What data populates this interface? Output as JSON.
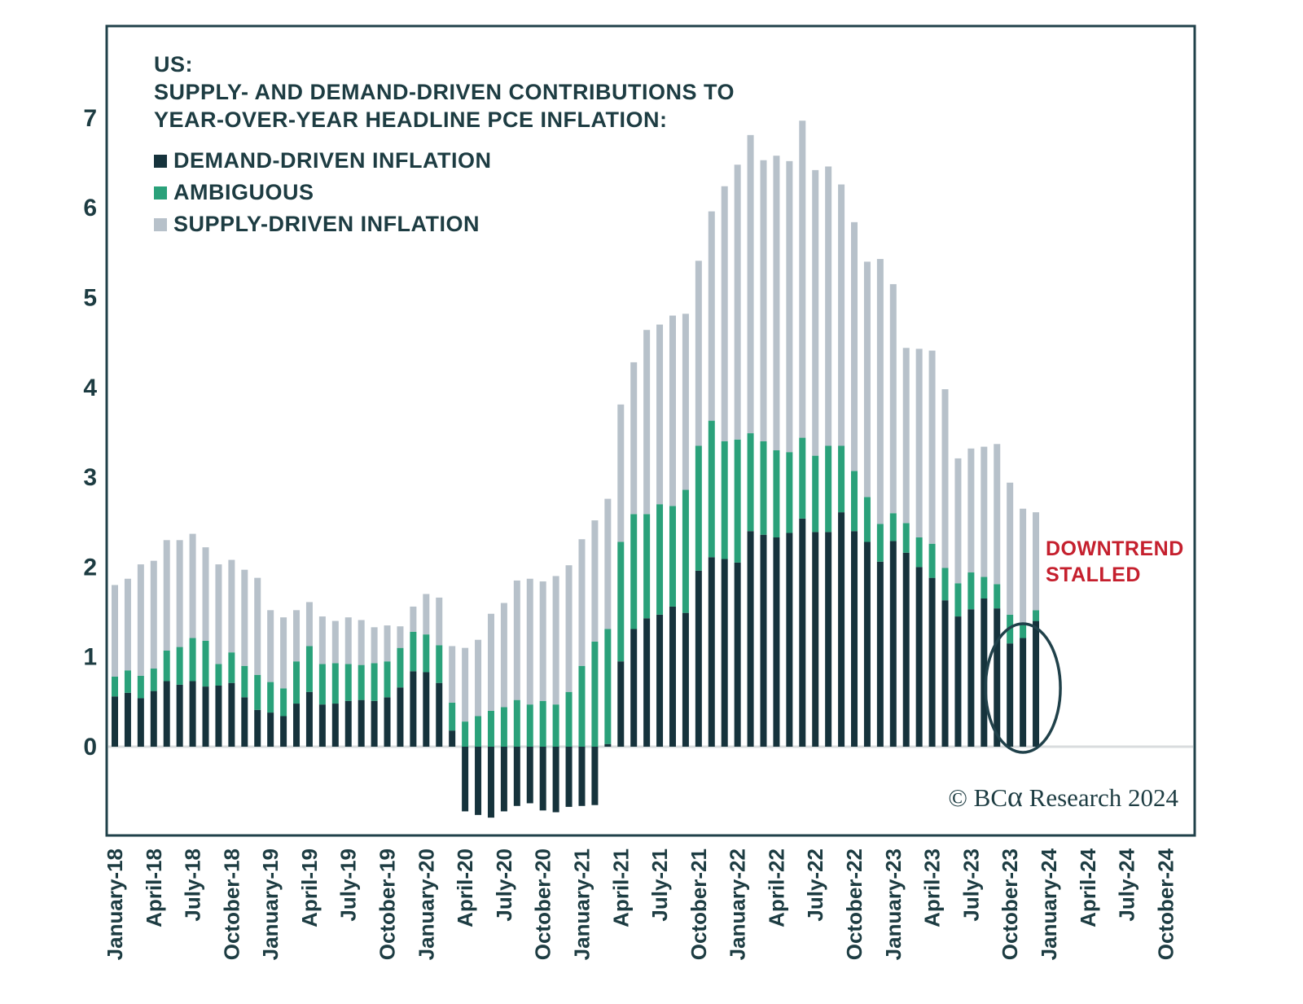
{
  "title": {
    "line1": "US:",
    "line2": "SUPPLY- AND DEMAND-DRIVEN CONTRIBUTIONS TO",
    "line3": "YEAR-OVER-YEAR HEADLINE PCE INFLATION:"
  },
  "legend": {
    "items": [
      {
        "label": "DEMAND-DRIVEN INFLATION",
        "color": "#16333c"
      },
      {
        "label": "AMBIGUOUS",
        "color": "#2aa17a"
      },
      {
        "label": "SUPPLY-DRIVEN INFLATION",
        "color": "#b7c1ca"
      }
    ]
  },
  "annotation": {
    "line1": "DOWNTREND",
    "line2": "STALLED",
    "color": "#c5202e",
    "circled_months": [
      "October-23",
      "November-23",
      "December-23"
    ]
  },
  "copyright": {
    "prefix": "© BC",
    "alpha": "α",
    "suffix": " Research 2024"
  },
  "chart_data": {
    "type": "bar",
    "stacked": true,
    "title": "US: SUPPLY- AND DEMAND-DRIVEN CONTRIBUTIONS TO YEAR-OVER-YEAR HEADLINE PCE INFLATION",
    "xlabel": "",
    "ylabel": "",
    "ylim": [
      -1,
      7
    ],
    "y_ticks": [
      0,
      1,
      2,
      3,
      4,
      5,
      6,
      7
    ],
    "grid": false,
    "legend_position": "top-left",
    "x_tick_labels": [
      "January-18",
      "April-18",
      "July-18",
      "October-18",
      "January-19",
      "April-19",
      "July-19",
      "October-19",
      "January-20",
      "April-20",
      "July-20",
      "October-20",
      "January-21",
      "April-21",
      "July-21",
      "October-21",
      "January-22",
      "April-22",
      "July-22",
      "October-22",
      "January-23",
      "April-23",
      "July-23",
      "October-23",
      "January-24",
      "April-24",
      "July-24",
      "October-24"
    ],
    "categories": [
      "January-18",
      "February-18",
      "March-18",
      "April-18",
      "May-18",
      "June-18",
      "July-18",
      "August-18",
      "September-18",
      "October-18",
      "November-18",
      "December-18",
      "January-19",
      "February-19",
      "March-19",
      "April-19",
      "May-19",
      "June-19",
      "July-19",
      "August-19",
      "September-19",
      "October-19",
      "November-19",
      "December-19",
      "January-20",
      "February-20",
      "March-20",
      "April-20",
      "May-20",
      "June-20",
      "July-20",
      "August-20",
      "September-20",
      "October-20",
      "November-20",
      "December-20",
      "January-21",
      "February-21",
      "March-21",
      "April-21",
      "May-21",
      "June-21",
      "July-21",
      "August-21",
      "September-21",
      "October-21",
      "November-21",
      "December-21",
      "January-22",
      "February-22",
      "March-22",
      "April-22",
      "May-22",
      "June-22",
      "July-22",
      "August-22",
      "September-22",
      "October-22",
      "November-22",
      "December-22",
      "January-23",
      "February-23",
      "March-23",
      "April-23",
      "May-23",
      "June-23",
      "July-23",
      "August-23",
      "September-23",
      "October-23",
      "November-23",
      "December-23"
    ],
    "series": [
      {
        "name": "DEMAND-DRIVEN INFLATION",
        "color": "#16333c",
        "values": [
          0.56,
          0.6,
          0.54,
          0.62,
          0.73,
          0.69,
          0.73,
          0.67,
          0.68,
          0.71,
          0.55,
          0.41,
          0.38,
          0.34,
          0.48,
          0.61,
          0.47,
          0.48,
          0.51,
          0.52,
          0.51,
          0.55,
          0.66,
          0.84,
          0.83,
          0.71,
          0.18,
          -0.72,
          -0.76,
          -0.79,
          -0.72,
          -0.66,
          -0.63,
          -0.71,
          -0.73,
          -0.67,
          -0.66,
          -0.65,
          0.03,
          0.95,
          1.31,
          1.43,
          1.47,
          1.56,
          1.49,
          1.96,
          2.11,
          2.09,
          2.05,
          2.4,
          2.36,
          2.33,
          2.38,
          2.54,
          2.39,
          2.39,
          2.61,
          2.4,
          2.28,
          2.06,
          2.29,
          2.16,
          2.0,
          1.88,
          1.63,
          1.45,
          1.53,
          1.65,
          1.54,
          1.15,
          1.21,
          1.4
        ]
      },
      {
        "name": "AMBIGUOUS",
        "color": "#2aa17a",
        "values": [
          0.22,
          0.25,
          0.25,
          0.25,
          0.34,
          0.42,
          0.48,
          0.51,
          0.24,
          0.34,
          0.35,
          0.39,
          0.34,
          0.31,
          0.47,
          0.51,
          0.45,
          0.45,
          0.41,
          0.39,
          0.42,
          0.4,
          0.44,
          0.44,
          0.42,
          0.42,
          0.31,
          0.28,
          0.34,
          0.4,
          0.44,
          0.52,
          0.47,
          0.51,
          0.47,
          0.61,
          0.9,
          1.17,
          1.28,
          1.33,
          1.28,
          1.16,
          1.23,
          1.12,
          1.37,
          1.39,
          1.52,
          1.31,
          1.37,
          1.09,
          1.04,
          0.97,
          0.9,
          0.9,
          0.85,
          0.96,
          0.74,
          0.67,
          0.5,
          0.42,
          0.31,
          0.33,
          0.33,
          0.38,
          0.36,
          0.37,
          0.41,
          0.24,
          0.27,
          0.32,
          0.17,
          0.12
        ]
      },
      {
        "name": "SUPPLY-DRIVEN INFLATION",
        "color": "#b7c1ca",
        "values": [
          1.02,
          1.02,
          1.24,
          1.2,
          1.23,
          1.19,
          1.16,
          1.04,
          1.11,
          1.03,
          1.07,
          1.08,
          0.8,
          0.79,
          0.57,
          0.49,
          0.53,
          0.47,
          0.52,
          0.5,
          0.4,
          0.4,
          0.24,
          0.28,
          0.45,
          0.53,
          0.63,
          0.82,
          0.85,
          1.08,
          1.16,
          1.33,
          1.4,
          1.33,
          1.43,
          1.41,
          1.41,
          1.35,
          1.45,
          1.53,
          1.69,
          2.05,
          2.0,
          2.12,
          1.96,
          2.06,
          2.33,
          2.84,
          3.06,
          3.32,
          3.13,
          3.28,
          3.24,
          3.53,
          3.18,
          3.11,
          2.91,
          2.77,
          2.62,
          2.95,
          2.55,
          1.95,
          2.1,
          2.15,
          1.99,
          1.39,
          1.38,
          1.45,
          1.56,
          1.47,
          1.27,
          1.09
        ]
      }
    ],
    "colors": {
      "axis_text": "#1d3c42",
      "border": "#20414a",
      "zero_line": "#d9dcde",
      "background": "#ffffff"
    }
  }
}
